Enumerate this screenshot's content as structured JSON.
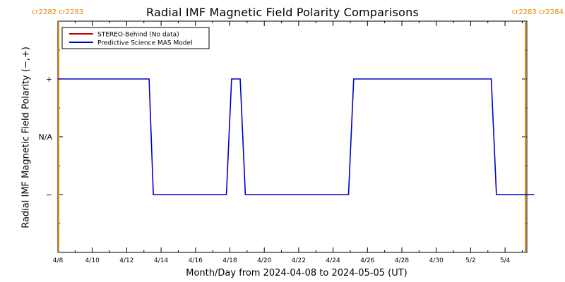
{
  "header": {
    "title": "Radial IMF Magnetic Field Polarity Comparisons",
    "carrington_left": "cr2282 cr2283",
    "carrington_right": "cr2283 cr2284"
  },
  "colors": {
    "stereo": "#c00000",
    "model": "#0000cc",
    "carrington_marker": "#e08a00",
    "axes": "#000000"
  },
  "chart_data": {
    "type": "line",
    "title": "Radial IMF Magnetic Field Polarity Comparisons",
    "xlabel": "Month/Day from 2024-04-08 to 2024-05-05 (UT)",
    "ylabel": "Radial IMF Magnetic Field Polarity (−,+)",
    "x_unit": "days since 2024-04-08",
    "xlim": [
      0,
      28
    ],
    "ylim": [
      -2,
      2
    ],
    "x_ticks": [
      {
        "x": 0,
        "label": "4/8"
      },
      {
        "x": 2,
        "label": "4/10"
      },
      {
        "x": 4,
        "label": "4/12"
      },
      {
        "x": 6,
        "label": "4/14"
      },
      {
        "x": 8,
        "label": "4/16"
      },
      {
        "x": 10,
        "label": "4/18"
      },
      {
        "x": 12,
        "label": "4/20"
      },
      {
        "x": 14,
        "label": "4/22"
      },
      {
        "x": 16,
        "label": "4/24"
      },
      {
        "x": 18,
        "label": "4/26"
      },
      {
        "x": 20,
        "label": "4/28"
      },
      {
        "x": 22,
        "label": "4/30"
      },
      {
        "x": 24,
        "label": "5/2"
      },
      {
        "x": 26,
        "label": "5/4"
      }
    ],
    "y_ticks": [
      {
        "y": 1,
        "label": "+"
      },
      {
        "y": 0,
        "label": "N/A"
      },
      {
        "y": -1,
        "label": "−"
      }
    ],
    "legend": {
      "placement": "top-left",
      "entries": [
        {
          "name": "STEREO-Behind (No data)",
          "color": "#c00000"
        },
        {
          "name": "Predictive Science MAS Model",
          "color": "#0000cc"
        }
      ]
    },
    "carrington_boundaries": [
      0,
      27.7
    ],
    "series": [
      {
        "name": "Predictive Science MAS Model",
        "color": "#0000cc",
        "x": [
          0,
          5.3,
          5.55,
          9.8,
          10.1,
          10.6,
          10.9,
          16.9,
          17.2,
          25.2,
          25.5,
          27.7
        ],
        "y": [
          1,
          1,
          -1,
          -1,
          1,
          1,
          -1,
          -1,
          1,
          1,
          -1,
          -1
        ]
      }
    ]
  }
}
